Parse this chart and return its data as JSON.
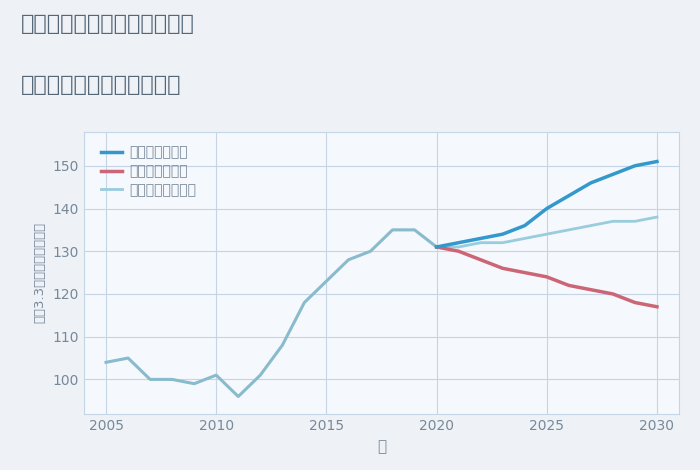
{
  "title_line1": "兵庫県神戸市兵庫区羽坂通の",
  "title_line2": "中古マンションの価格推移",
  "xlabel": "年",
  "ylabel": "坪（3.3㎡）単価（万円）",
  "bg_color": "#eef2f7",
  "plot_bg_color": "#f5f8fc",
  "grid_color": "#c5d5e5",
  "title_color": "#556677",
  "axis_color": "#778899",
  "historical_years": [
    2005,
    2006,
    2007,
    2008,
    2009,
    2010,
    2011,
    2012,
    2013,
    2014,
    2015,
    2016,
    2017,
    2018,
    2019,
    2020
  ],
  "historical_values": [
    104,
    105,
    100,
    100,
    99,
    101,
    96,
    101,
    108,
    118,
    123,
    128,
    130,
    135,
    135,
    131
  ],
  "future_years": [
    2020,
    2021,
    2022,
    2023,
    2024,
    2025,
    2026,
    2027,
    2028,
    2029,
    2030
  ],
  "good_values": [
    131,
    132,
    133,
    134,
    136,
    140,
    143,
    146,
    148,
    150,
    151
  ],
  "bad_values": [
    131,
    130,
    128,
    126,
    125,
    124,
    122,
    121,
    120,
    118,
    117
  ],
  "normal_values": [
    131,
    131,
    132,
    132,
    133,
    134,
    135,
    136,
    137,
    137,
    138
  ],
  "good_color": "#3399cc",
  "bad_color": "#cc6677",
  "normal_color": "#99ccdd",
  "historical_color": "#88bbcc",
  "good_label": "グッドシナリオ",
  "bad_label": "バッドシナリオ",
  "normal_label": "ノーマルシナリオ",
  "ylim": [
    92,
    158
  ],
  "xlim": [
    2004,
    2031
  ],
  "yticks": [
    100,
    110,
    120,
    130,
    140,
    150
  ],
  "xticks": [
    2005,
    2010,
    2015,
    2020,
    2025,
    2030
  ]
}
